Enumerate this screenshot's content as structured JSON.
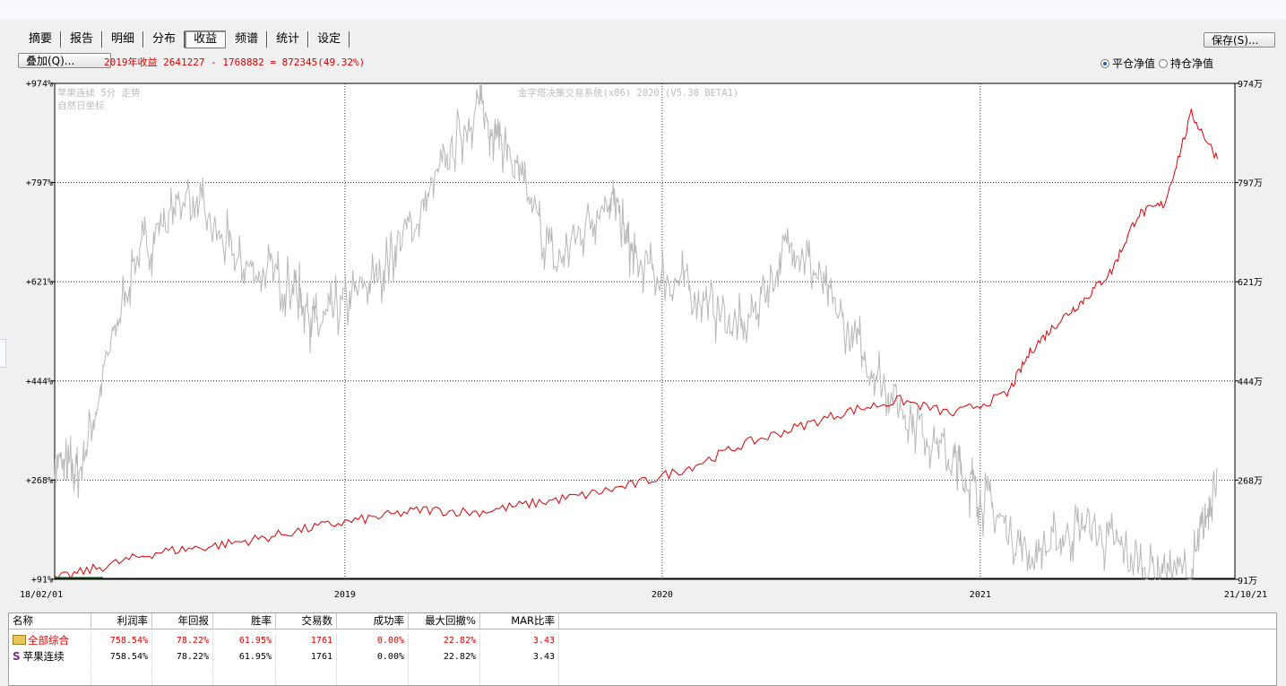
{
  "tabs": [
    {
      "label": "摘要"
    },
    {
      "label": "报告"
    },
    {
      "label": "明细"
    },
    {
      "label": "分布"
    },
    {
      "label": "收益",
      "active": true
    },
    {
      "label": "频谱"
    },
    {
      "label": "统计"
    },
    {
      "label": "设定"
    }
  ],
  "toolbar": {
    "overlay_label": "叠加(Q)...",
    "save_label": "保存(S)...",
    "profit_text": "2019年收益 2641227 - 1768882 = 872345(49.32%)",
    "radio_flat": "平仓净值",
    "radio_hold": "持仓净值",
    "radio_selected": "flat"
  },
  "watermark": {
    "line1": "苹果连续 5分 走势",
    "line2": "自然日坐标",
    "system": "金字塔决策交易系统(x86) 2020 (V5.30 BETA1)"
  },
  "colors": {
    "equity": "#e00000",
    "price": "#b8b8b8",
    "flat": "#1a8a1a"
  },
  "chart_data": {
    "type": "line",
    "x_ticks": [
      "18/02/01",
      "2019",
      "2020",
      "2021",
      "21/10/21"
    ],
    "y_left_ticks": [
      "+974%",
      "+797%",
      "+621%",
      "+444%",
      "+268%",
      "+91%"
    ],
    "y_right_ticks": [
      "974万",
      "797万",
      "621万",
      "444万",
      "268万",
      "91万"
    ],
    "ylim": [
      91,
      974
    ],
    "grid": "dotted",
    "series": [
      {
        "name": "红线",
        "color": "#e00000",
        "x": [
          "2018-02",
          "2018-04",
          "2018-06",
          "2018-08",
          "2018-10",
          "2018-12",
          "2019-02",
          "2019-04",
          "2019-06",
          "2019-08",
          "2019-10",
          "2019-12",
          "2020-02",
          "2020-04",
          "2020-06",
          "2020-08",
          "2020-10",
          "2020-12",
          "2021-02",
          "2021-03",
          "2021-04",
          "2021-05",
          "2021-06",
          "2021-07",
          "2021-08",
          "2021-09",
          "2021-10"
        ],
        "values": [
          91,
          115,
          140,
          150,
          165,
          185,
          200,
          215,
          210,
          225,
          240,
          260,
          290,
          330,
          360,
          390,
          410,
          385,
          420,
          500,
          550,
          590,
          640,
          740,
          760,
          920,
          840
        ]
      },
      {
        "name": "灰线",
        "color": "#b8b8b8",
        "x": [
          "2018-02",
          "2018-03",
          "2018-05",
          "2018-07",
          "2018-09",
          "2018-11",
          "2018-12",
          "2019-02",
          "2019-04",
          "2019-06",
          "2019-07",
          "2019-09",
          "2019-11",
          "2019-12",
          "2020-02",
          "2020-04",
          "2020-06",
          "2020-08",
          "2020-10",
          "2020-12",
          "2021-01",
          "2021-03",
          "2021-05",
          "2021-07",
          "2021-09",
          "2021-10"
        ],
        "values": [
          300,
          280,
          650,
          780,
          650,
          620,
          540,
          620,
          750,
          940,
          870,
          650,
          780,
          650,
          610,
          530,
          700,
          530,
          400,
          300,
          240,
          130,
          190,
          120,
          100,
          290
        ]
      }
    ]
  },
  "table": {
    "headers": [
      "名称",
      "利润率",
      "年回报",
      "胜率",
      "交易数",
      "成功率",
      "最大回撤%",
      "MAR比率"
    ],
    "rows": [
      {
        "name": "全部综合",
        "icon": "folder-icon",
        "values": [
          "758.54%",
          "78.22%",
          "61.95%",
          "1761",
          "0.00%",
          "22.82%",
          "3.43"
        ],
        "color": "#e00000"
      },
      {
        "name": "苹果连续",
        "icon": "s-icon",
        "values": [
          "758.54%",
          "78.22%",
          "61.95%",
          "1761",
          "0.00%",
          "22.82%",
          "3.43"
        ],
        "color": "#000000"
      }
    ]
  }
}
